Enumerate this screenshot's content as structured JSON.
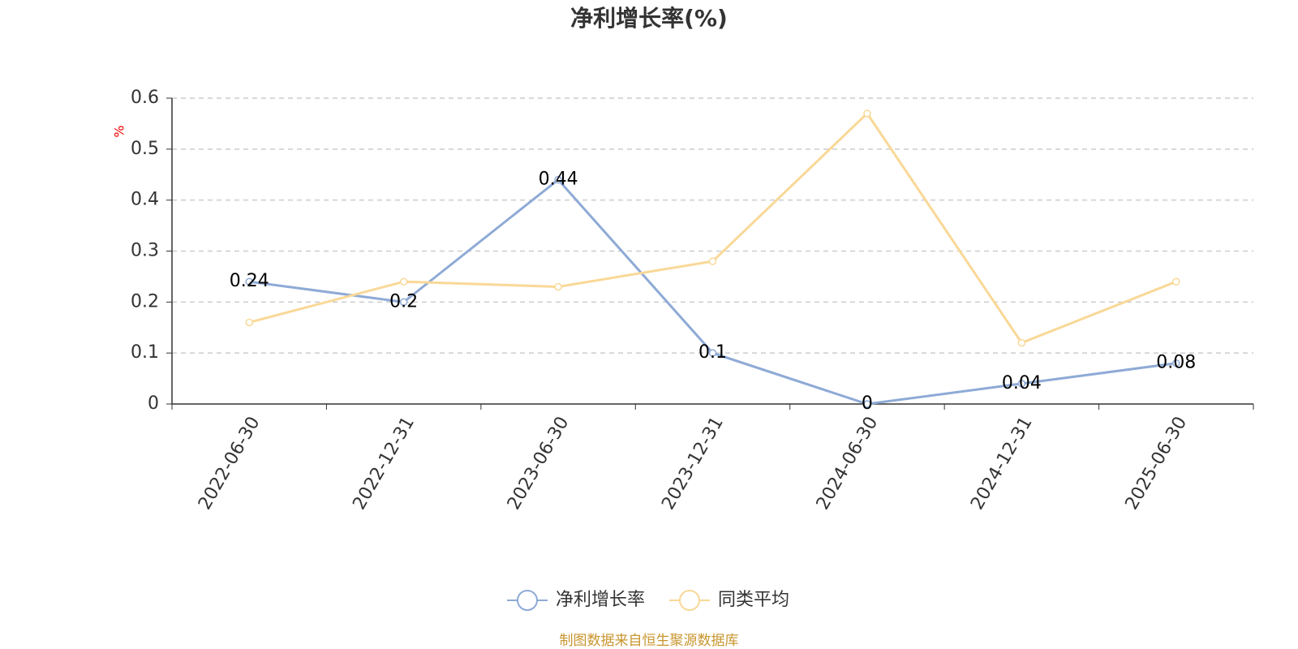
{
  "chart_data": {
    "type": "line",
    "title": "净利增长率(%)",
    "y_label": "%",
    "footer": "制图数据来自恒生聚源数据库",
    "categories": [
      "2022-06-30",
      "2022-12-31",
      "2023-06-30",
      "2023-12-31",
      "2024-06-30",
      "2024-12-31",
      "2025-06-30"
    ],
    "series": [
      {
        "name": "净利增长率",
        "color": "#8eaad6",
        "values": [
          0.24,
          0.2,
          0.44,
          0.1,
          0,
          0.04,
          0.08
        ],
        "data_labels": true
      },
      {
        "name": "同类平均",
        "color": "#f9d897",
        "values": [
          0.16,
          0.24,
          0.23,
          0.28,
          0.57,
          0.12,
          0.24
        ],
        "data_labels": false
      }
    ],
    "ylim": [
      0,
      0.6
    ],
    "yticks": [
      0,
      0.1,
      0.2,
      0.3,
      0.4,
      0.5,
      0.6
    ],
    "grid": true,
    "legend": "bottom"
  }
}
